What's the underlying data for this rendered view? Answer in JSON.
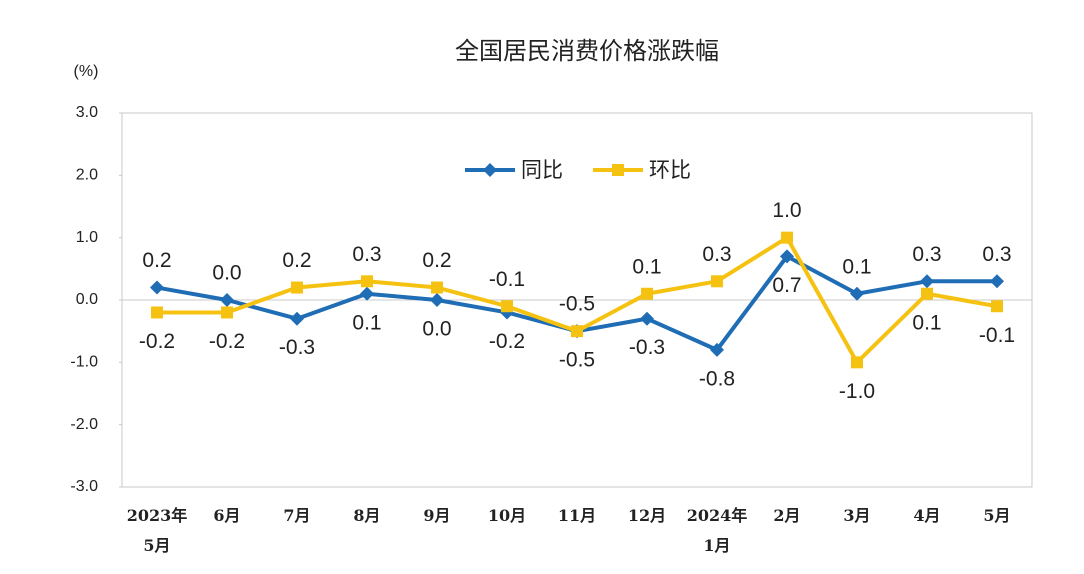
{
  "chart_data": {
    "type": "line",
    "title": "全国居民消费价格涨跌幅",
    "ylabel": "(%)",
    "categories": [
      "2023年\n5月",
      "6月",
      "7月",
      "8月",
      "9月",
      "10月",
      "11月",
      "12月",
      "2024年\n1月",
      "2月",
      "3月",
      "4月",
      "5月"
    ],
    "series": [
      {
        "name": "同比",
        "color": "#1f6db5",
        "marker": "diamond",
        "values": [
          0.2,
          0.0,
          -0.3,
          0.1,
          0.0,
          -0.2,
          -0.5,
          -0.3,
          -0.8,
          0.7,
          0.1,
          0.3,
          0.3
        ],
        "value_labels": [
          "0.2",
          "0.0",
          "-0.3",
          "0.1",
          "0.0",
          "-0.2",
          "-0.5",
          "-0.3",
          "-0.8",
          "0.7",
          "0.1",
          "0.3",
          "0.3"
        ]
      },
      {
        "name": "环比",
        "color": "#f5c211",
        "marker": "square",
        "values": [
          -0.2,
          -0.2,
          0.2,
          0.3,
          0.2,
          -0.1,
          -0.5,
          0.1,
          0.3,
          1.0,
          -1.0,
          0.1,
          -0.1
        ],
        "value_labels": [
          "-0.2",
          "-0.2",
          "0.2",
          "0.3",
          "0.2",
          "-0.1",
          "-0.5",
          "0.1",
          "0.3",
          "1.0",
          "-1.0",
          "0.1",
          "-0.1"
        ]
      }
    ],
    "ylim": [
      -3,
      3
    ],
    "yticks": [
      {
        "value": 3,
        "label": "3.0"
      },
      {
        "value": 2,
        "label": "2.0"
      },
      {
        "value": 1,
        "label": "1.0"
      },
      {
        "value": 0,
        "label": "0.0"
      },
      {
        "value": -1,
        "label": "-1.0"
      },
      {
        "value": -2,
        "label": "-2.0"
      },
      {
        "value": -3,
        "label": "-3.0"
      }
    ],
    "grid": false,
    "legend": "top"
  }
}
